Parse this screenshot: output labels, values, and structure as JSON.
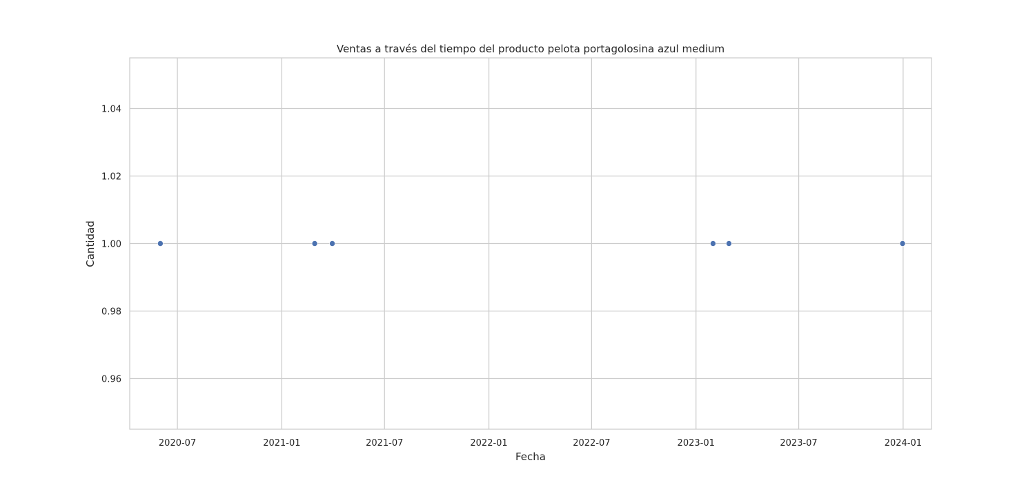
{
  "chart_data": {
    "type": "scatter",
    "title": "Ventas a través del tiempo del producto pelota portagolosina azul medium",
    "xlabel": "Fecha",
    "ylabel": "Cantidad",
    "x_axis_type": "date",
    "xlim": [
      "2020-04-08",
      "2024-02-20"
    ],
    "ylim": [
      0.945,
      1.055
    ],
    "x_ticks": [
      "2020-07",
      "2021-01",
      "2021-07",
      "2022-01",
      "2022-07",
      "2023-01",
      "2023-07",
      "2024-01"
    ],
    "y_ticks": [
      "0.96",
      "0.98",
      "1.00",
      "1.02",
      "1.04"
    ],
    "grid": true,
    "marker_color": "#4c72b0",
    "points": [
      {
        "x": "2020-06-01",
        "y": 1.0
      },
      {
        "x": "2021-02-28",
        "y": 1.0
      },
      {
        "x": "2021-03-31",
        "y": 1.0
      },
      {
        "x": "2023-01-31",
        "y": 1.0
      },
      {
        "x": "2023-02-28",
        "y": 1.0
      },
      {
        "x": "2023-12-31",
        "y": 1.0
      }
    ]
  }
}
